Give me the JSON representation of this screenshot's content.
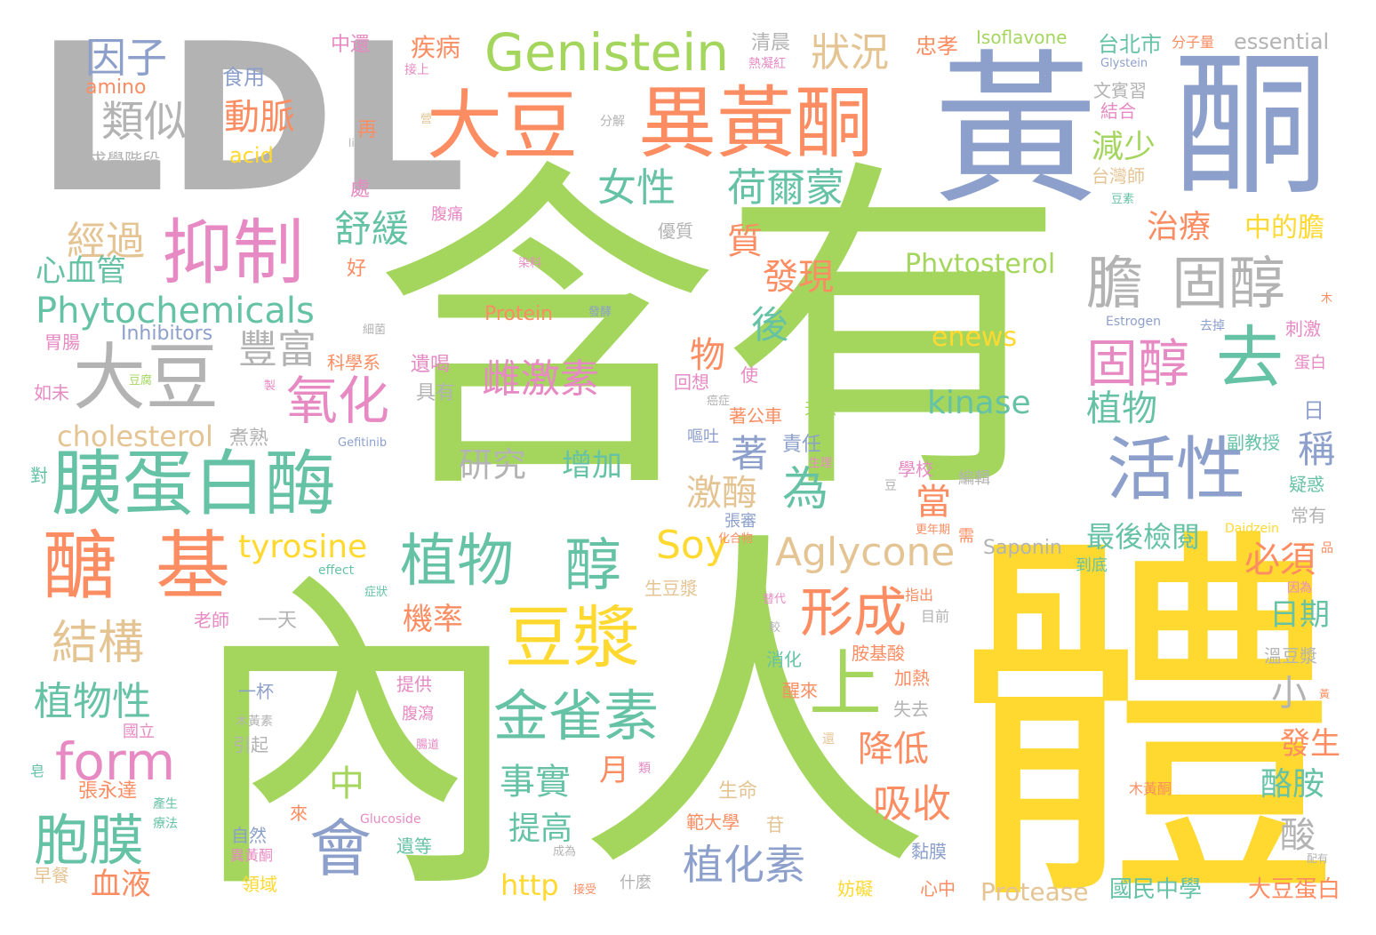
{
  "palette": {
    "green": "#a4d65e",
    "yellow": "#ffd92f",
    "orange": "#fc8d62",
    "blue": "#8da0cb",
    "pink": "#e78ac3",
    "teal": "#66c2a5",
    "tan": "#e5c494",
    "gray": "#b3b3b3"
  },
  "words": [
    {
      "text": "含有",
      "color": "green"
    },
    {
      "text": "人",
      "color": "green"
    },
    {
      "text": "體",
      "color": "yellow"
    },
    {
      "text": "內",
      "color": "green"
    },
    {
      "text": "黃",
      "color": "blue"
    },
    {
      "text": "酮",
      "color": "blue"
    },
    {
      "text": "LDL",
      "color": "gray"
    },
    {
      "text": "異黃酮",
      "color": "orange"
    },
    {
      "text": "大豆",
      "color": "orange"
    },
    {
      "text": "Genistein",
      "color": "green"
    },
    {
      "text": "抑制",
      "color": "pink"
    },
    {
      "text": "胰蛋白酶",
      "color": "teal"
    },
    {
      "text": "醣",
      "color": "orange"
    },
    {
      "text": "基",
      "color": "orange"
    },
    {
      "text": "大豆",
      "color": "gray"
    },
    {
      "text": "植物",
      "color": "teal"
    },
    {
      "text": "醇",
      "color": "teal"
    },
    {
      "text": "豆漿",
      "color": "yellow"
    },
    {
      "text": "活性",
      "color": "blue"
    },
    {
      "text": "膽",
      "color": "gray"
    },
    {
      "text": "固醇",
      "color": "gray"
    },
    {
      "text": "去",
      "color": "teal"
    },
    {
      "text": "固醇",
      "color": "pink"
    },
    {
      "text": "金雀素",
      "color": "teal"
    },
    {
      "text": "形成",
      "color": "orange"
    },
    {
      "text": "會",
      "color": "blue"
    },
    {
      "text": "上",
      "color": "green"
    },
    {
      "text": "結構",
      "color": "tan"
    },
    {
      "text": "胞膜",
      "color": "teal"
    },
    {
      "text": "form",
      "color": "pink"
    },
    {
      "text": "氧化",
      "color": "pink"
    },
    {
      "text": "Phytochemicals",
      "color": "teal"
    },
    {
      "text": "荷爾蒙",
      "color": "teal"
    },
    {
      "text": "女性",
      "color": "teal"
    },
    {
      "text": "雌激素",
      "color": "pink"
    },
    {
      "text": "Aglycone",
      "color": "tan"
    },
    {
      "text": "Soy",
      "color": "yellow"
    },
    {
      "text": "為",
      "color": "teal"
    },
    {
      "text": "狀況",
      "color": "tan"
    },
    {
      "text": "因子",
      "color": "blue"
    },
    {
      "text": "類似",
      "color": "gray"
    },
    {
      "text": "動脈",
      "color": "orange"
    },
    {
      "text": "舒緩",
      "color": "teal"
    },
    {
      "text": "經過",
      "color": "tan"
    },
    {
      "text": "心血管",
      "color": "teal"
    },
    {
      "text": "豐富",
      "color": "gray"
    },
    {
      "text": "cholesterol",
      "color": "tan"
    },
    {
      "text": "tyrosine",
      "color": "yellow"
    },
    {
      "text": "植物性",
      "color": "teal"
    },
    {
      "text": "血液",
      "color": "orange"
    },
    {
      "text": "研究",
      "color": "gray"
    },
    {
      "text": "增加",
      "color": "teal"
    },
    {
      "text": "kinase",
      "color": "teal"
    },
    {
      "text": "enews",
      "color": "yellow"
    },
    {
      "text": "Phytosterol",
      "color": "green"
    },
    {
      "text": "發現",
      "color": "orange"
    },
    {
      "text": "質",
      "color": "orange"
    },
    {
      "text": "後",
      "color": "teal"
    },
    {
      "text": "物",
      "color": "orange"
    },
    {
      "text": "著",
      "color": "blue"
    },
    {
      "text": "激酶",
      "color": "tan"
    },
    {
      "text": "當",
      "color": "orange"
    },
    {
      "text": "機率",
      "color": "orange"
    },
    {
      "text": "吸收",
      "color": "orange"
    },
    {
      "text": "降低",
      "color": "orange"
    },
    {
      "text": "事實",
      "color": "teal"
    },
    {
      "text": "植化素",
      "color": "blue"
    },
    {
      "text": "中",
      "color": "green"
    },
    {
      "text": "http",
      "color": "yellow"
    },
    {
      "text": "提高",
      "color": "teal"
    },
    {
      "text": "月",
      "color": "orange"
    },
    {
      "text": "減少",
      "color": "green"
    },
    {
      "text": "治療",
      "color": "orange"
    },
    {
      "text": "植物",
      "color": "teal"
    },
    {
      "text": "中的膽",
      "color": "yellow"
    },
    {
      "text": "稱",
      "color": "blue"
    },
    {
      "text": "最後檢閱",
      "color": "teal"
    },
    {
      "text": "必須",
      "color": "orange"
    },
    {
      "text": "日期",
      "color": "teal"
    },
    {
      "text": "小",
      "color": "gray"
    },
    {
      "text": "酪胺",
      "color": "teal"
    },
    {
      "text": "酸",
      "color": "gray"
    },
    {
      "text": "發生",
      "color": "orange"
    },
    {
      "text": "國民中學",
      "color": "teal"
    },
    {
      "text": "大豆蛋白",
      "color": "orange"
    },
    {
      "text": "Protease",
      "color": "tan"
    },
    {
      "text": "Saponin",
      "color": "gray"
    },
    {
      "text": "Isoflavone",
      "color": "green"
    },
    {
      "text": "essential",
      "color": "gray"
    },
    {
      "text": "台北市",
      "color": "teal"
    },
    {
      "text": "忠孝",
      "color": "orange"
    },
    {
      "text": "清晨",
      "color": "gray"
    },
    {
      "text": "疾病",
      "color": "orange"
    },
    {
      "text": "中還",
      "color": "pink"
    },
    {
      "text": "食用",
      "color": "blue"
    },
    {
      "text": "amino",
      "color": "orange"
    },
    {
      "text": "acid",
      "color": "yellow"
    },
    {
      "text": "求學階段",
      "color": "gray"
    },
    {
      "text": "Protein",
      "color": "orange"
    },
    {
      "text": "Inhibitors",
      "color": "blue"
    },
    {
      "text": "科學系",
      "color": "orange"
    },
    {
      "text": "遺喝",
      "color": "pink"
    },
    {
      "text": "具有",
      "color": "gray"
    },
    {
      "text": "胃腸",
      "color": "pink"
    },
    {
      "text": "如未",
      "color": "pink"
    },
    {
      "text": "對",
      "color": "teal"
    },
    {
      "text": "煮熟",
      "color": "gray"
    },
    {
      "text": "優質",
      "color": "gray"
    },
    {
      "text": "腹痛",
      "color": "pink"
    },
    {
      "text": "好",
      "color": "orange"
    },
    {
      "text": "處",
      "color": "pink"
    },
    {
      "text": "再",
      "color": "orange"
    },
    {
      "text": "分解",
      "color": "gray"
    },
    {
      "text": "文賓習",
      "color": "gray"
    },
    {
      "text": "結合",
      "color": "pink"
    },
    {
      "text": "台灣師",
      "color": "tan"
    },
    {
      "text": "回想",
      "color": "pink"
    },
    {
      "text": "使",
      "color": "pink"
    },
    {
      "text": "著公車",
      "color": "orange"
    },
    {
      "text": "天然",
      "color": "green"
    },
    {
      "text": "責任",
      "color": "blue"
    },
    {
      "text": "副教授",
      "color": "teal"
    },
    {
      "text": "蛋白",
      "color": "pink"
    },
    {
      "text": "刺激",
      "color": "pink"
    },
    {
      "text": "日",
      "color": "blue"
    },
    {
      "text": "疑惑",
      "color": "teal"
    },
    {
      "text": "常有",
      "color": "gray"
    },
    {
      "text": "學校",
      "color": "pink"
    },
    {
      "text": "編輯",
      "color": "gray"
    },
    {
      "text": "張審",
      "color": "blue"
    },
    {
      "text": "嘔吐",
      "color": "blue"
    },
    {
      "text": "到底",
      "color": "teal"
    },
    {
      "text": "生豆漿",
      "color": "tan"
    },
    {
      "text": "指出",
      "color": "orange"
    },
    {
      "text": "目前",
      "color": "gray"
    },
    {
      "text": "老師",
      "color": "pink"
    },
    {
      "text": "一天",
      "color": "gray"
    },
    {
      "text": "胺基酸",
      "color": "orange"
    },
    {
      "text": "消化",
      "color": "teal"
    },
    {
      "text": "醒來",
      "color": "orange"
    },
    {
      "text": "加熱",
      "color": "orange"
    },
    {
      "text": "溫豆漿",
      "color": "gray"
    },
    {
      "text": "提供",
      "color": "pink"
    },
    {
      "text": "腹瀉",
      "color": "pink"
    },
    {
      "text": "一杯",
      "color": "blue"
    },
    {
      "text": "失去",
      "color": "gray"
    },
    {
      "text": "引起",
      "color": "gray"
    },
    {
      "text": "國立",
      "color": "pink"
    },
    {
      "text": "張永達",
      "color": "orange"
    },
    {
      "text": "生命",
      "color": "tan"
    },
    {
      "text": "來",
      "color": "orange"
    },
    {
      "text": "範大學",
      "color": "orange"
    },
    {
      "text": "苷",
      "color": "tan"
    },
    {
      "text": "自然",
      "color": "blue"
    },
    {
      "text": "遺等",
      "color": "teal"
    },
    {
      "text": "黏膜",
      "color": "blue"
    },
    {
      "text": "早餐",
      "color": "tan"
    },
    {
      "text": "領域",
      "color": "yellow"
    },
    {
      "text": "什麼",
      "color": "gray"
    },
    {
      "text": "妨礙",
      "color": "yellow"
    },
    {
      "text": "心中",
      "color": "orange"
    },
    {
      "text": "異黃酮",
      "color": "pink"
    },
    {
      "text": "Glucoside",
      "color": "pink"
    },
    {
      "text": "木黃素",
      "color": "gray"
    },
    {
      "text": "木黃酮",
      "color": "orange"
    },
    {
      "text": "Glystein",
      "color": "blue"
    },
    {
      "text": "Estrogen",
      "color": "blue"
    },
    {
      "text": "Daidzein",
      "color": "yellow"
    },
    {
      "text": "Gefitinib",
      "color": "blue"
    },
    {
      "text": "effect",
      "color": "teal"
    },
    {
      "text": "like",
      "color": "gray"
    },
    {
      "text": "分子量",
      "color": "orange"
    },
    {
      "text": "熱凝紅",
      "color": "pink"
    },
    {
      "text": "接上",
      "color": "pink"
    },
    {
      "text": "染料",
      "color": "pink"
    },
    {
      "text": "發酵",
      "color": "blue"
    },
    {
      "text": "去掉",
      "color": "blue"
    },
    {
      "text": "細菌",
      "color": "gray"
    },
    {
      "text": "豆腐",
      "color": "green"
    },
    {
      "text": "癌症",
      "color": "gray"
    },
    {
      "text": "症狀",
      "color": "teal"
    },
    {
      "text": "化合物",
      "color": "orange"
    },
    {
      "text": "更年期",
      "color": "orange"
    },
    {
      "text": "替代",
      "color": "pink"
    },
    {
      "text": "較",
      "color": "gray"
    },
    {
      "text": "因為",
      "color": "pink"
    },
    {
      "text": "配有",
      "color": "gray"
    },
    {
      "text": "品",
      "color": "orange"
    },
    {
      "text": "需",
      "color": "orange"
    },
    {
      "text": "豆",
      "color": "gray"
    },
    {
      "text": "豆素",
      "color": "teal"
    },
    {
      "text": "產生",
      "color": "teal"
    },
    {
      "text": "療法",
      "color": "teal"
    },
    {
      "text": "類",
      "color": "pink"
    },
    {
      "text": "成為",
      "color": "gray"
    },
    {
      "text": "接受",
      "color": "orange"
    },
    {
      "text": "還",
      "color": "tan"
    },
    {
      "text": "黃",
      "color": "orange"
    },
    {
      "text": "腸道",
      "color": "pink"
    },
    {
      "text": "木",
      "color": "orange"
    },
    {
      "text": "生理",
      "color": "pink"
    },
    {
      "text": "皂",
      "color": "teal"
    },
    {
      "text": "製",
      "color": "pink"
    },
    {
      "text": "營",
      "color": "tan"
    }
  ]
}
